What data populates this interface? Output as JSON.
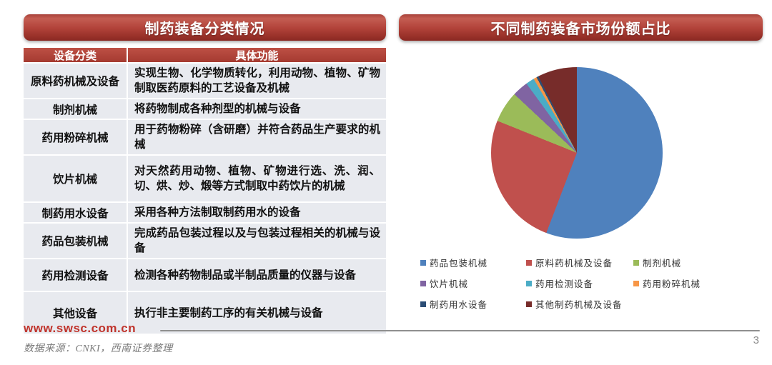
{
  "page": {
    "footer_url": "www.swsc.com.cn",
    "source_note": "数据来源：CNKI，西南证券整理",
    "page_number": "3"
  },
  "left_panel": {
    "title": "制药装备分类情况",
    "table": {
      "headers": [
        "设备分类",
        "具体功能"
      ],
      "rows": [
        {
          "category": "原料药机械及设备",
          "function": "实现生物、化学物质转化，利用动物、植物、矿物制取医药原料的工艺设备及机械"
        },
        {
          "category": "制剂机械",
          "function": "将药物制成各种剂型的机械与设备"
        },
        {
          "category": "药用粉碎机械",
          "function": "用于药物粉碎（含研磨）并符合药品生产要求的机械"
        },
        {
          "category": "饮片机械",
          "function": "对天然药用动物、植物、矿物进行选、洗、润、切、烘、炒、煅等方式制取中药饮片的机械"
        },
        {
          "category": "制药用水设备",
          "function": "采用各种方法制取制药用水的设备"
        },
        {
          "category": "药品包装机械",
          "function": "完成药品包装过程以及与包装过程相关的机械与设备"
        },
        {
          "category": "药用检测设备",
          "function": "检测各种药物制品或半制品质量的仪器与设备"
        },
        {
          "category": "其他设备",
          "function": "执行非主要制药工序的有关机械与设备"
        }
      ]
    }
  },
  "right_panel": {
    "title": "不同制药装备市场份额占比"
  },
  "chart_data": {
    "type": "pie",
    "title": "不同制药装备市场份额占比",
    "unit": "percent",
    "legend_position": "bottom",
    "start_angle_deg": 0,
    "direction": "clockwise",
    "slices": [
      {
        "label": "药品包装机械",
        "value": 55.8,
        "color": "#4F81BD"
      },
      {
        "label": "原料药机械及设备",
        "value": 25.3,
        "color": "#C0504D"
      },
      {
        "label": "制剂机械",
        "value": 5.9,
        "color": "#9BBB59"
      },
      {
        "label": "饮片机械",
        "value": 3.0,
        "color": "#8064A2"
      },
      {
        "label": "药用检测设备",
        "value": 1.6,
        "color": "#4BACC6"
      },
      {
        "label": "药用粉碎机械",
        "value": 0.6,
        "color": "#F79646"
      },
      {
        "label": "制药用水设备",
        "value": 0.4,
        "color": "#2C4D75"
      },
      {
        "label": "其他制药机械及设备",
        "value": 7.4,
        "color": "#772C2A"
      }
    ]
  }
}
